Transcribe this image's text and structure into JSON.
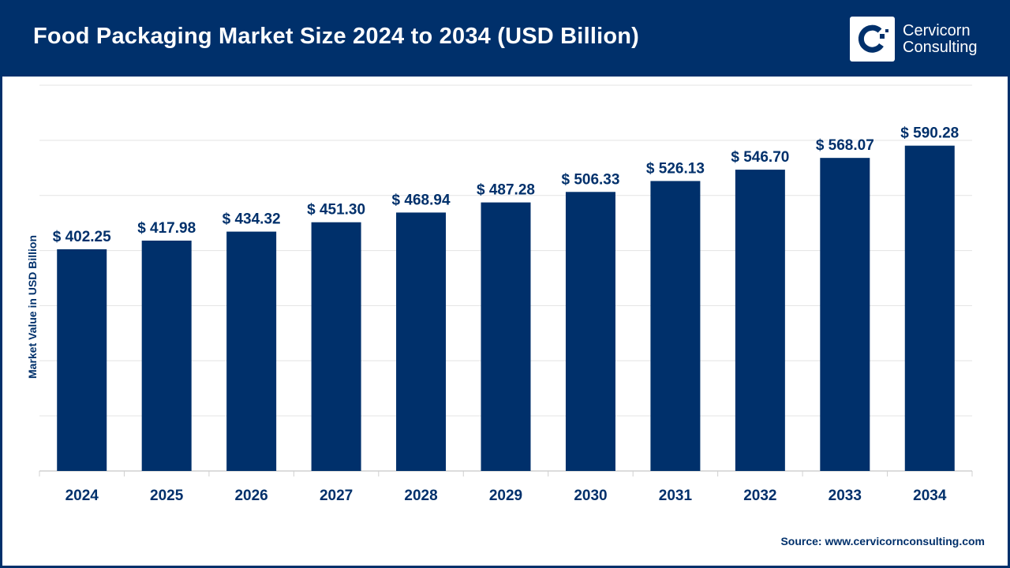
{
  "header": {
    "title": "Food Packaging Market Size 2024 to 2034 (USD Billion)"
  },
  "logo": {
    "line1": "Cervicorn",
    "line2": "Consulting"
  },
  "source": "Source: www.cervicornconsulting.com",
  "colors": {
    "bar": "#00306b",
    "header": "#00306b",
    "grid": "#e3e3e3"
  },
  "chart_data": {
    "type": "bar",
    "title": "Food Packaging Market Size 2024 to 2034 (USD Billion)",
    "xlabel": "",
    "ylabel": "Market Value in USD Billion",
    "ylim": [
      0,
      700
    ],
    "grid": true,
    "categories": [
      "2024",
      "2025",
      "2026",
      "2027",
      "2028",
      "2029",
      "2030",
      "2031",
      "2032",
      "2033",
      "2034"
    ],
    "values": [
      402.25,
      417.98,
      434.32,
      451.3,
      468.94,
      487.28,
      506.33,
      526.13,
      546.7,
      568.07,
      590.28
    ],
    "data_labels": [
      "$ 402.25",
      "$ 417.98",
      "$ 434.32",
      "$ 451.30",
      "$ 468.94",
      "$ 487.28",
      "$ 506.33",
      "$ 526.13",
      "$ 546.70",
      "$ 568.07",
      "$ 590.28"
    ]
  }
}
